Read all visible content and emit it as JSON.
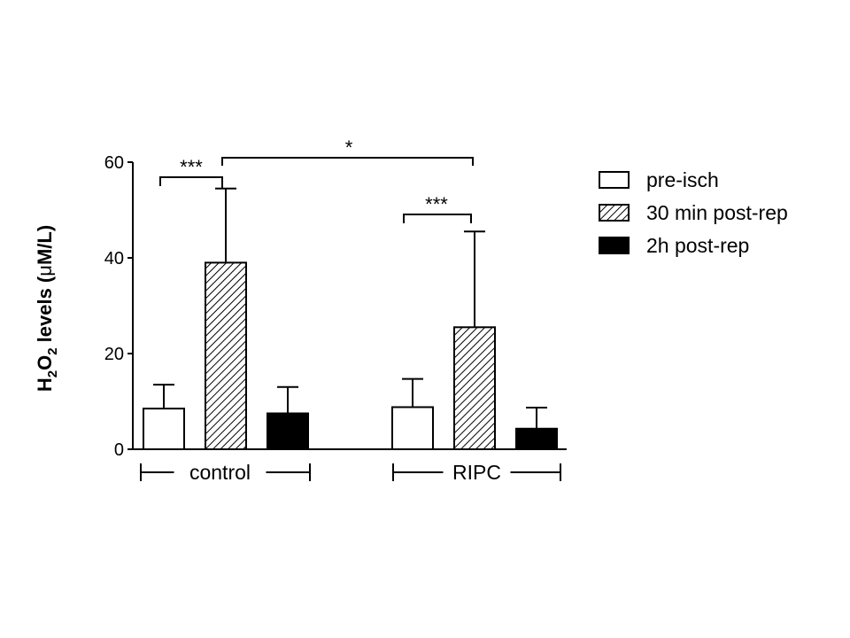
{
  "chart_data": {
    "type": "bar",
    "ylabel": {
      "main": "H",
      "sub1": "2",
      "mid": "O",
      "sub2": "2",
      "rest_prefix": " levels (",
      "greek": "μ",
      "rest_suffix": "M/L)"
    },
    "ylim": [
      0,
      60
    ],
    "yticks": [
      0,
      20,
      40,
      60
    ],
    "categories": [
      "control",
      "RIPC"
    ],
    "series": [
      {
        "name": "pre-isch",
        "fill": "white",
        "values": [
          8.5,
          8.8
        ],
        "errors": [
          5.0,
          5.9
        ]
      },
      {
        "name": "30 min post-rep",
        "fill": "hatched",
        "values": [
          39.0,
          25.5
        ],
        "errors": [
          15.5,
          20.0
        ]
      },
      {
        "name": "2h post-rep",
        "fill": "black",
        "values": [
          7.5,
          4.3
        ],
        "errors": [
          5.5,
          4.4
        ]
      }
    ],
    "significance": [
      {
        "label": "***",
        "category": 0,
        "from_series": 0,
        "to_series": 1
      },
      {
        "label": "***",
        "category": 1,
        "from_series": 0,
        "to_series": 1
      },
      {
        "label": "*",
        "from_category": 0,
        "from_series": 1,
        "to_category": 1,
        "to_series": 1
      }
    ],
    "legend_position": "right",
    "grid": false
  },
  "colors": {
    "axis": "#000000",
    "bar_border": "#000000",
    "black_fill": "#000000",
    "white_fill": "#ffffff"
  }
}
